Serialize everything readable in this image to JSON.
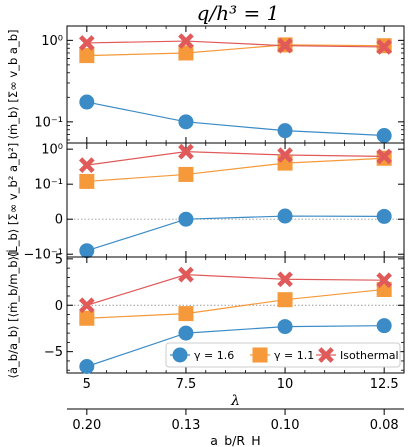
{
  "chart_data": {
    "type": "line",
    "title": "q/h³ = 1",
    "xlabel": "λ",
    "x": [
      5,
      7.5,
      10,
      12.5
    ],
    "xtick_labels": [
      "5",
      "7.5",
      "10",
      "12.5"
    ],
    "secondary_xaxis": {
      "label": "a_b/R_H",
      "tick_labels": [
        "0.20",
        "0.13",
        "0.10",
        "0.08"
      ]
    },
    "legend": {
      "placement": "lower-right",
      "entries": [
        "γ = 1.6",
        "γ = 1.1",
        "Isothermal"
      ]
    },
    "panels": [
      {
        "ylabel": "⟨ṁ_b⟩ [Σ∞ v_b a_b]",
        "yscale": "log",
        "ylim": [
          0.055,
          1.5
        ],
        "ytick_labels": [
          "10⁰",
          "10⁻¹"
        ],
        "series": [
          {
            "name": "γ = 1.6",
            "color": "#3b8bc6",
            "marker": "circle",
            "values": [
              0.175,
              0.1,
              0.078,
              0.068
            ]
          },
          {
            "name": "γ = 1.1",
            "color": "#f5993a",
            "marker": "square",
            "values": [
              0.65,
              0.7,
              0.88,
              0.86
            ]
          },
          {
            "name": "Isothermal",
            "color": "#e05a5a",
            "marker": "x",
            "values": [
              0.93,
              0.98,
              0.86,
              0.83
            ]
          }
        ]
      },
      {
        "ylabel": "⟨L̇_b⟩ [Σ∞ v_b² a_b²]",
        "yscale": "symlog",
        "ylim": [
          -0.12,
          1.5
        ],
        "ytick_labels": [
          "10⁰",
          "10⁻¹",
          "0",
          "−10⁻¹"
        ],
        "series": [
          {
            "name": "γ = 1.6",
            "color": "#3b8bc6",
            "marker": "circle",
            "values": [
              -0.09,
              0.0,
              0.009,
              0.008
            ]
          },
          {
            "name": "γ = 1.1",
            "color": "#f5993a",
            "marker": "square",
            "values": [
              0.12,
              0.19,
              0.4,
              0.55
            ]
          },
          {
            "name": "Isothermal",
            "color": "#e05a5a",
            "marker": "x",
            "values": [
              0.35,
              0.85,
              0.68,
              0.62
            ]
          }
        ]
      },
      {
        "ylabel": "⟨ȧ_b/a_b⟩ [⟨ṁ_b/m_b⟩]",
        "yscale": "linear",
        "ylim": [
          -7.3,
          5.2
        ],
        "yticks": [
          -5,
          0,
          5
        ],
        "ytick_labels": [
          "−5",
          "0",
          "5"
        ],
        "series": [
          {
            "name": "γ = 1.6",
            "color": "#3b8bc6",
            "marker": "circle",
            "values": [
              -6.6,
              -3.0,
              -2.3,
              -2.2
            ]
          },
          {
            "name": "γ = 1.1",
            "color": "#f5993a",
            "marker": "square",
            "values": [
              -1.4,
              -0.9,
              0.6,
              1.7
            ]
          },
          {
            "name": "Isothermal",
            "color": "#e05a5a",
            "marker": "x",
            "values": [
              0.0,
              3.3,
              2.8,
              2.7
            ]
          }
        ]
      }
    ]
  }
}
